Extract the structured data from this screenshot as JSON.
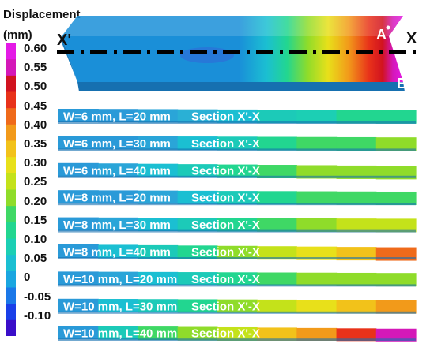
{
  "legend": {
    "title": "Displacement",
    "unit": "(mm)",
    "ticks": [
      "0.60",
      "0.55",
      "0.50",
      "0.45",
      "0.40",
      "0.35",
      "0.30",
      "0.25",
      "0.20",
      "0.15",
      "0.10",
      "0.05",
      "0",
      "-0.05",
      "-0.10"
    ],
    "colors": [
      "#3a0ec9",
      "#1a3fe8",
      "#1b78e8",
      "#1aa6e0",
      "#1bbfd2",
      "#1ccfb4",
      "#22d690",
      "#3fd865",
      "#8fdc2a",
      "#c4e21a",
      "#e8e01a",
      "#f2c21a",
      "#f29a1a",
      "#ef6a1a",
      "#e8321a",
      "#d1131f",
      "#d418b8",
      "#e41ae6"
    ]
  },
  "main_plate": {
    "left_marker": "X'",
    "right_marker": "X",
    "point_a": "A",
    "point_b": "B"
  },
  "sections": [
    {
      "label": "W=6 mm, L=20 mm",
      "section": "Section X'-X",
      "colors": [
        "#2a9ad8",
        "#2a9ad8",
        "#2aa5d8",
        "#2ab0d5",
        "#1bbfd2",
        "#1ccab8",
        "#1ccfb4",
        "#22d690",
        "#22d690"
      ]
    },
    {
      "label": "W=6 mm, L=30 mm",
      "section": "Section X'-X",
      "colors": [
        "#2a9ad8",
        "#2a9ad8",
        "#2aa5d8",
        "#1bbfd2",
        "#1ccab8",
        "#22d690",
        "#3fd865",
        "#3fd865",
        "#8fdc2a"
      ]
    },
    {
      "label": "W=6 mm, L=40 mm",
      "section": "Section X'-X",
      "colors": [
        "#2a9ad8",
        "#2aa5d8",
        "#1bbfd2",
        "#1ccab8",
        "#22d690",
        "#3fd865",
        "#8fdc2a",
        "#8fdc2a",
        "#8fdc2a"
      ]
    },
    {
      "label": "W=8 mm, L=20 mm",
      "section": "Section X'-X",
      "colors": [
        "#2a9ad8",
        "#2a9ad8",
        "#2aa5d8",
        "#1bbfd2",
        "#1ccab8",
        "#22d690",
        "#3fd865",
        "#3fd865",
        "#3fd865"
      ]
    },
    {
      "label": "W=8 mm, L=30 mm",
      "section": "Section X'-X",
      "colors": [
        "#2a9ad8",
        "#2aa5d8",
        "#1bbfd2",
        "#1ccab8",
        "#22d690",
        "#3fd865",
        "#8fdc2a",
        "#c4e21a",
        "#c4e21a"
      ]
    },
    {
      "label": "W=8 mm, L=40 mm",
      "section": "Section X'-X",
      "colors": [
        "#2a9ad8",
        "#1bbfd2",
        "#1ccab8",
        "#22d690",
        "#8fdc2a",
        "#c4e21a",
        "#e8e01a",
        "#f2c21a",
        "#ef6a1a"
      ]
    },
    {
      "label": "W=10 mm, L=20 mm",
      "section": "Section X'-X",
      "colors": [
        "#2a9ad8",
        "#2aa5d8",
        "#1bbfd2",
        "#1ccab8",
        "#22d690",
        "#3fd865",
        "#8fdc2a",
        "#8fdc2a",
        "#8fdc2a"
      ]
    },
    {
      "label": "W=10 mm, L=30 mm",
      "section": "Section X'-X",
      "colors": [
        "#2a9ad8",
        "#1bbfd2",
        "#1ccab8",
        "#22d690",
        "#8fdc2a",
        "#c4e21a",
        "#e8e01a",
        "#f2c21a",
        "#f29a1a"
      ]
    },
    {
      "label": "W=10 mm, L=40 mm",
      "section": "Section X'-X",
      "colors": [
        "#2a9ad8",
        "#1ccab8",
        "#3fd865",
        "#8fdc2a",
        "#c4e21a",
        "#f2c21a",
        "#f29a1a",
        "#e8321a",
        "#d418b8"
      ]
    }
  ]
}
